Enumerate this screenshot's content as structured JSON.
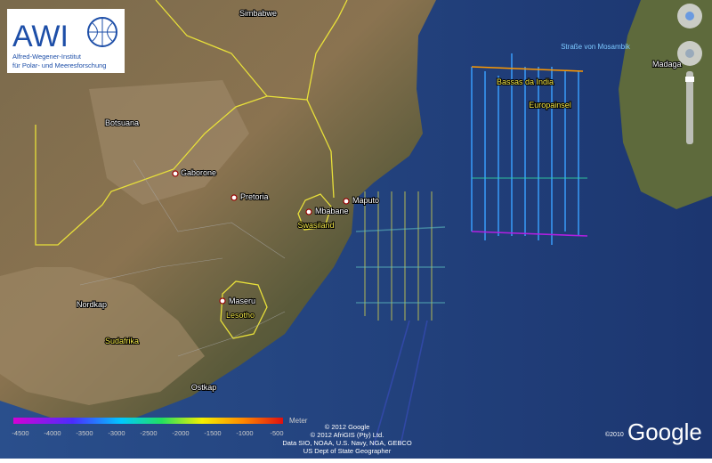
{
  "logo": {
    "acronym": "AWI",
    "line1": "Alfred-Wegener-Institut",
    "line2": "für Polar- und Meeresforschung"
  },
  "places": {
    "simbabwe": "Simbabwe",
    "botsuana": "Botsuana",
    "gaborone": "Gaborone",
    "pretoria": "Pretoria",
    "mbabane": "Mbabane",
    "swasiland": "Swasiland",
    "maputo": "Maputo",
    "maseru": "Maseru",
    "lesotho": "Lesotho",
    "nordkap": "Nordkap",
    "sudafrika": "Sudafrika",
    "ostkap": "Ostkap",
    "bassas": "Bassas da India",
    "europainsel": "Europainsel",
    "strasse": "Straße von Mosambik",
    "madagaskar": "Madaga"
  },
  "depth_legend": {
    "unit": "Meter",
    "labels": [
      "-4500",
      "-4000",
      "-3500",
      "-3000",
      "-2500",
      "-2000",
      "-1500",
      "-1000",
      "-500"
    ]
  },
  "attribution": [
    "© 2012 Google",
    "© 2012 AfriGIS (Pty) Ltd.",
    "Data SIO, NOAA, U.S. Navy, NGA, GEBCO",
    "US Dept of State Geographer"
  ],
  "imagery_year": "©2010",
  "brand": "Google"
}
